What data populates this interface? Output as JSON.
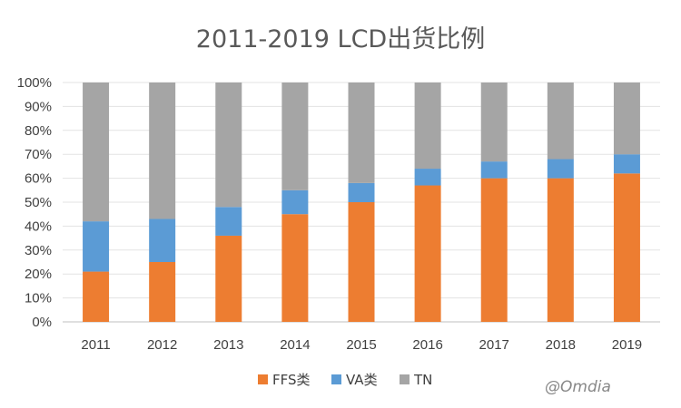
{
  "chart_data": {
    "type": "bar",
    "stacked": true,
    "percent": true,
    "title": "2011-2019 LCD出货比例",
    "categories": [
      "2011",
      "2012",
      "2013",
      "2014",
      "2015",
      "2016",
      "2017",
      "2018",
      "2019"
    ],
    "series": [
      {
        "name": "FFS类",
        "color": "#ED7D31",
        "values": [
          21,
          25,
          36,
          45,
          50,
          57,
          60,
          60,
          62
        ]
      },
      {
        "name": "VA类",
        "color": "#5B9BD5",
        "values": [
          21,
          18,
          12,
          10,
          8,
          7,
          7,
          8,
          8
        ]
      },
      {
        "name": "TN",
        "color": "#A5A5A5",
        "values": [
          58,
          57,
          52,
          45,
          42,
          36,
          33,
          32,
          30
        ]
      }
    ],
    "ylim": [
      0,
      100
    ],
    "yticks": [
      "0%",
      "10%",
      "20%",
      "30%",
      "40%",
      "50%",
      "60%",
      "70%",
      "80%",
      "90%",
      "100%"
    ],
    "legend_position": "bottom",
    "xlabel": "",
    "ylabel": ""
  },
  "watermark": "@Omdia"
}
